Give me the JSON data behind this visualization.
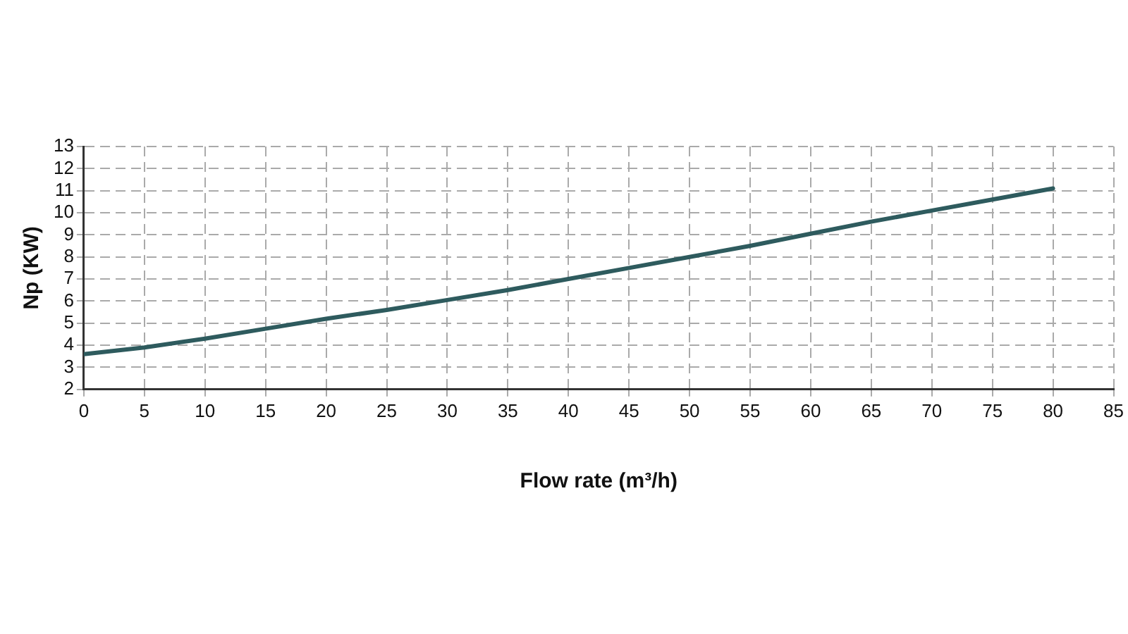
{
  "chart_data": {
    "type": "line",
    "xlabel": "Flow rate (m³/h)",
    "ylabel": "Np (KW)",
    "x": [
      0,
      5,
      10,
      15,
      20,
      25,
      30,
      35,
      40,
      45,
      50,
      55,
      60,
      65,
      70,
      75,
      80
    ],
    "series": [
      {
        "color": "#2e5b5e",
        "values": [
          3.6,
          3.9,
          4.3,
          4.75,
          5.2,
          5.6,
          6.05,
          6.5,
          7.0,
          7.5,
          8.0,
          8.5,
          9.05,
          9.6,
          10.1,
          10.6,
          11.1
        ]
      }
    ],
    "xlim": [
      0,
      85
    ],
    "xticks": [
      0,
      5,
      10,
      15,
      20,
      25,
      30,
      35,
      40,
      45,
      50,
      55,
      60,
      65,
      70,
      75,
      80,
      85
    ],
    "ylim": [
      2,
      13
    ],
    "yticks": [
      2,
      3,
      4,
      5,
      6,
      7,
      8,
      9,
      10,
      11,
      12,
      13
    ],
    "grid": true,
    "legend": false,
    "marker": "none",
    "line_style": "solid"
  }
}
